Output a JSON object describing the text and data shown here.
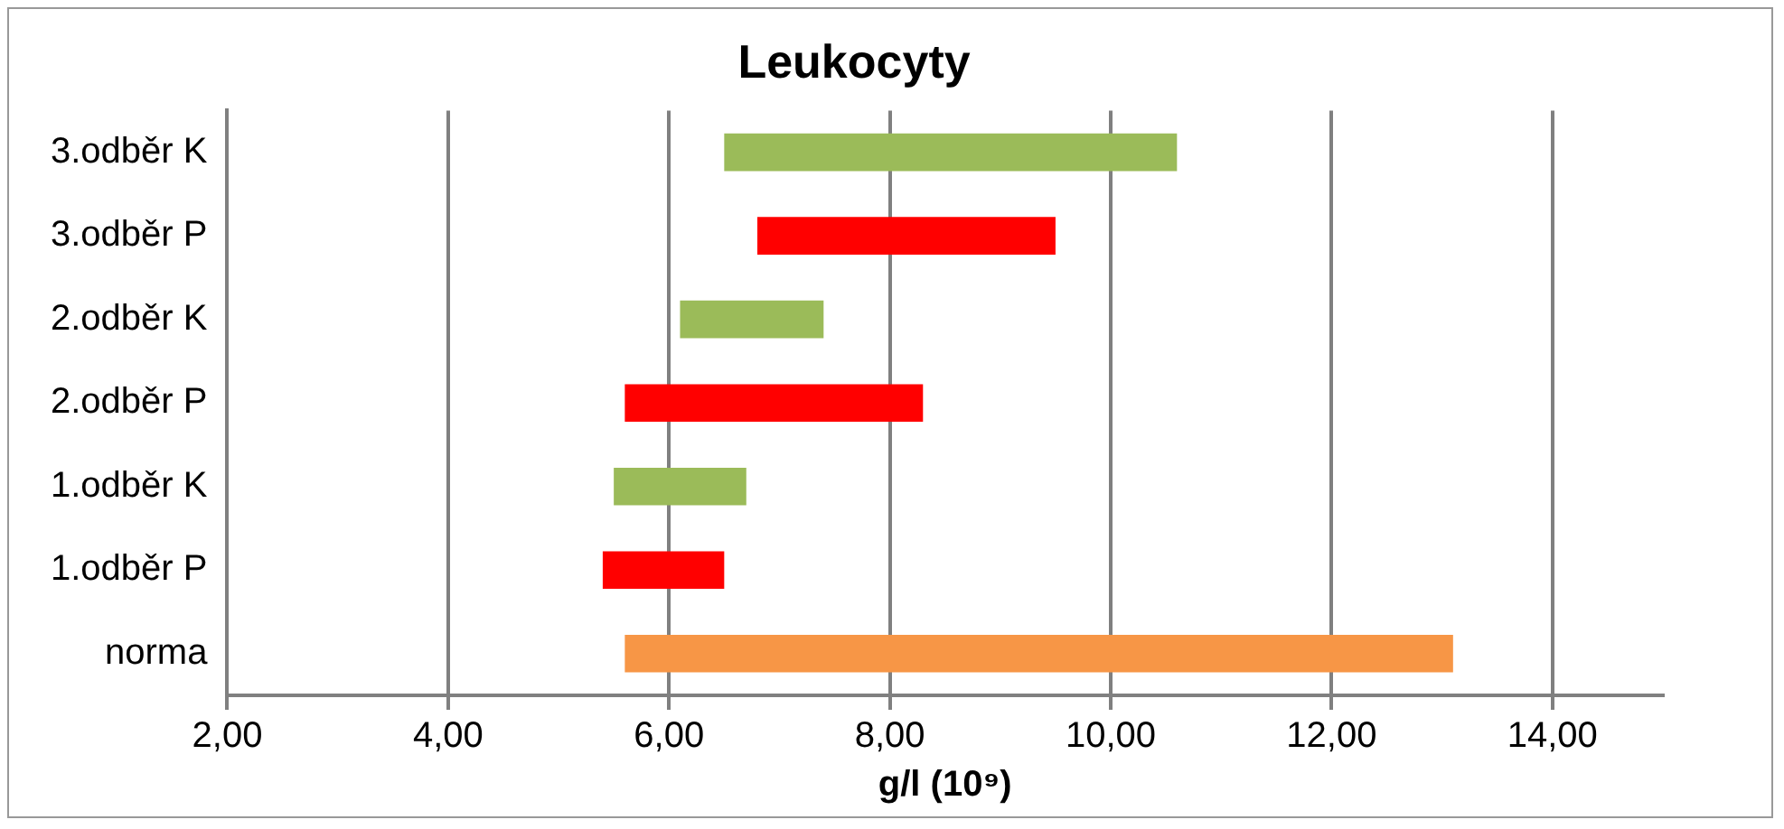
{
  "chart_data": {
    "type": "bar",
    "orientation": "horizontal",
    "title": "Leukocyty",
    "xlabel": "g/l (10⁹)",
    "categories": [
      "3.odběr K",
      "3.odběr P",
      "2.odběr K",
      "2.odběr P",
      "1.odběr K",
      "1.odběr P",
      "norma"
    ],
    "base": [
      6.5,
      6.8,
      6.1,
      5.6,
      5.5,
      5.4,
      5.6
    ],
    "values": [
      4.1,
      2.7,
      1.3,
      2.7,
      1.2,
      1.1,
      7.5
    ],
    "colors": [
      "#9bbb59",
      "#ff0000",
      "#9bbb59",
      "#ff0000",
      "#9bbb59",
      "#ff0000",
      "#f79646"
    ],
    "xlim": [
      2,
      15
    ],
    "xticks": [
      {
        "value": 2,
        "label": "2,00"
      },
      {
        "value": 4,
        "label": "4,00"
      },
      {
        "value": 6,
        "label": "6,00"
      },
      {
        "value": 8,
        "label": "8,00"
      },
      {
        "value": 10,
        "label": "10,00"
      },
      {
        "value": 12,
        "label": "12,00"
      },
      {
        "value": 14,
        "label": "14,00"
      }
    ],
    "grid": "x",
    "legend": false
  }
}
